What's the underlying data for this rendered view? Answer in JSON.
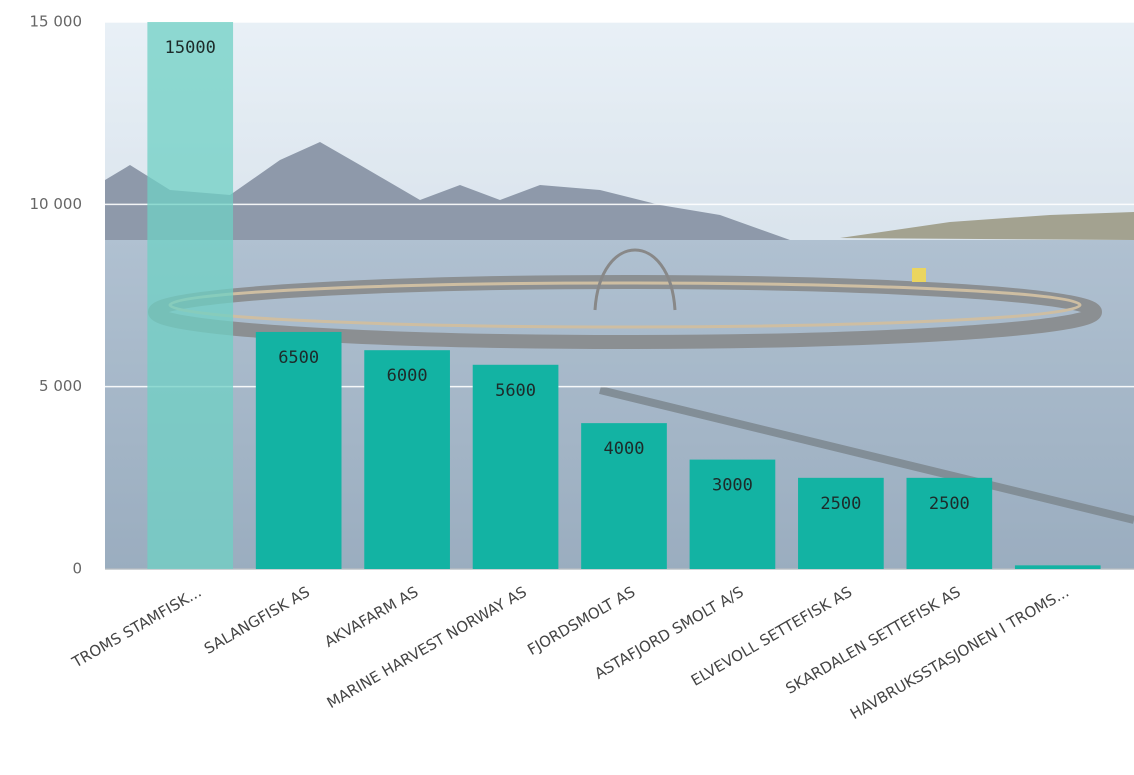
{
  "chart_data": {
    "type": "bar",
    "categories": [
      "TROMS STAMFISK...",
      "SALANGFISK AS",
      "AKVAFARM AS",
      "MARINE HARVEST NORWAY AS",
      "FJORDSMOLT AS",
      "ASTAFJORD SMOLT A/S",
      "ELVEVOLL SETTEFISK AS",
      "SKARDALEN SETTEFISK AS",
      "HAVBRUKSSTASJONEN I TROMS..."
    ],
    "values": [
      15000,
      6500,
      6000,
      5600,
      4000,
      3000,
      2500,
      2500,
      100
    ],
    "colors": [
      "#6fd0c4",
      "#13b3a3",
      "#13b3a3",
      "#13b3a3",
      "#13b3a3",
      "#13b3a3",
      "#13b3a3",
      "#13b3a3",
      "#13b3a3"
    ],
    "ylim": [
      0,
      15000
    ],
    "yticks": [
      0,
      {
        "value": 5000,
        "label": "5 000"
      },
      {
        "value": 10000,
        "label": "10 000"
      },
      {
        "value": 15000,
        "label": "15 000"
      }
    ],
    "grid": true
  }
}
